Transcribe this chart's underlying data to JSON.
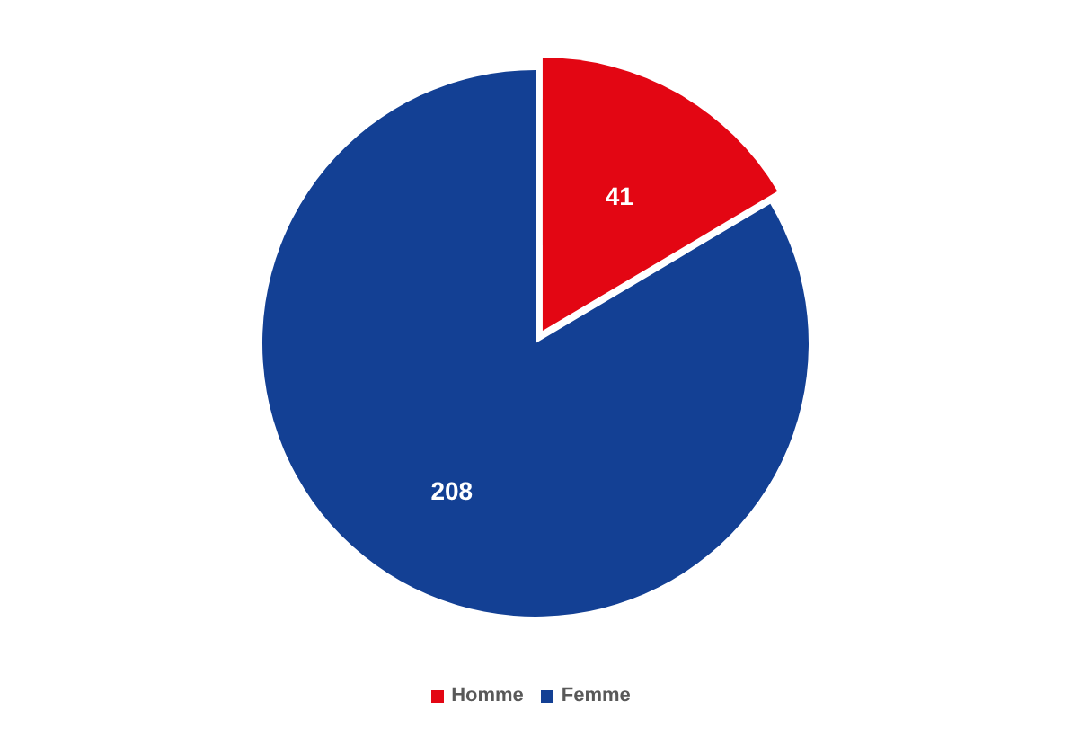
{
  "chart_data": {
    "type": "pie",
    "categories": [
      "Homme",
      "Femme"
    ],
    "values": [
      41,
      208
    ],
    "colors": [
      "#e30613",
      "#134094"
    ],
    "data_labels": true,
    "legend": "bottom"
  }
}
